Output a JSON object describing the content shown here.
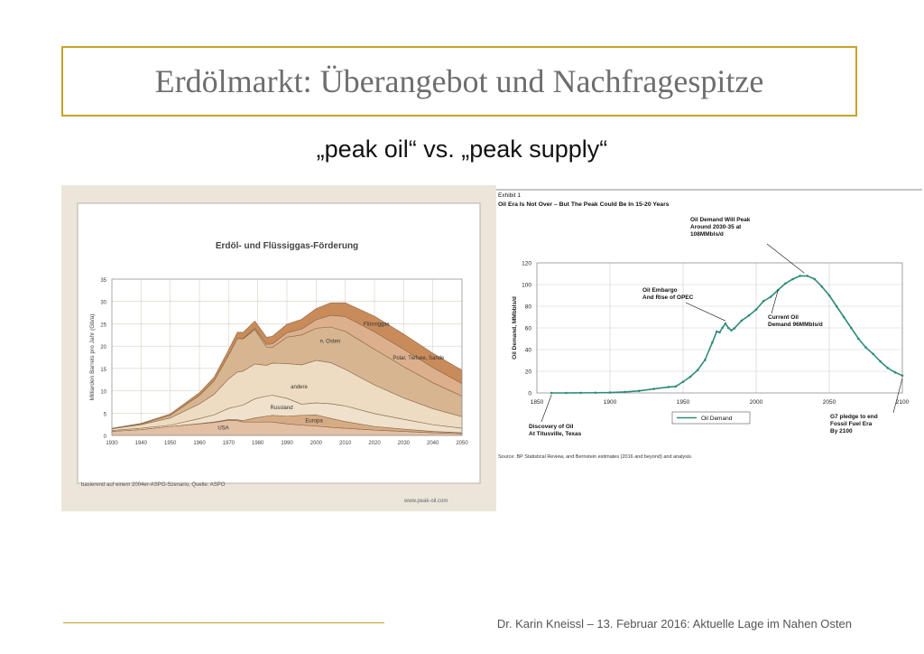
{
  "slide": {
    "title": "Erdölmarkt: Überangebot und Nachfragespitze",
    "subtitle": "„peak oil“ vs. „peak supply“",
    "footer": "Dr. Karin Kneissl – 13. Februar 2016:  Aktuelle Lage im Nahen Osten"
  },
  "colors": {
    "accent": "#c9a227",
    "title": "#6e6e6e",
    "line": "#2e8b7a"
  },
  "chart_data": [
    {
      "type": "area",
      "title": "Erdöl- und Flüssiggas-Förderung",
      "ylabel": "Milliarden Barrels pro Jahr (Gb/a)",
      "xlabel": "",
      "xlim": [
        1930,
        2050
      ],
      "ylim": [
        0,
        35
      ],
      "xticks": [
        "1930",
        "1940",
        "1950",
        "1960",
        "1970",
        "1980",
        "1990",
        "2000",
        "2010",
        "2020",
        "2030",
        "2040",
        "2050"
      ],
      "yticks": [
        "0",
        "5",
        "10",
        "15",
        "20",
        "25",
        "30",
        "35"
      ],
      "x": [
        1930,
        1940,
        1950,
        1960,
        1965,
        1970,
        1973,
        1975,
        1979,
        1983,
        1985,
        1990,
        1995,
        2000,
        2005,
        2010,
        2020,
        2030,
        2040,
        2050
      ],
      "series": [
        {
          "name": "USA",
          "values": [
            0.9,
            1.3,
            2.0,
            2.6,
            2.9,
            3.4,
            3.3,
            3.0,
            3.0,
            3.0,
            3.0,
            2.6,
            2.3,
            2.1,
            1.8,
            1.6,
            1.2,
            0.9,
            0.6,
            0.4
          ],
          "color": "#e3bfa4"
        },
        {
          "name": "Europa",
          "values": [
            0.0,
            0.0,
            0.0,
            0.05,
            0.1,
            0.15,
            0.2,
            0.3,
            0.9,
            1.3,
            1.5,
            1.7,
            2.2,
            2.5,
            2.0,
            1.5,
            0.8,
            0.5,
            0.3,
            0.2
          ],
          "color": "#d7ac85"
        },
        {
          "name": "Russland",
          "values": [
            0.2,
            0.3,
            0.3,
            1.1,
            1.6,
            2.5,
            3.0,
            3.5,
            4.3,
            4.5,
            4.5,
            4.0,
            2.5,
            2.7,
            3.3,
            3.5,
            2.9,
            2.2,
            1.5,
            1.0
          ],
          "color": "#efe1cc"
        },
        {
          "name": "andere",
          "values": [
            0.4,
            0.8,
            1.6,
            3.3,
            4.6,
            6.6,
            7.7,
            7.6,
            7.8,
            6.9,
            7.2,
            7.8,
            8.8,
            9.5,
            9.2,
            8.2,
            6.4,
            4.8,
            3.6,
            2.6
          ],
          "color": "#eddcc1"
        },
        {
          "name": "n. Osten",
          "values": [
            0.0,
            0.1,
            0.6,
            1.9,
            3.0,
            5.3,
            7.5,
            7.2,
            7.7,
            4.1,
            3.5,
            5.9,
            6.7,
            7.2,
            8.0,
            8.5,
            8.0,
            7.0,
            5.8,
            4.6
          ],
          "color": "#d6b590"
        },
        {
          "name": "Polar, Tiefsee, Sande",
          "values": [
            0,
            0,
            0,
            0,
            0,
            0,
            0,
            0.1,
            0.3,
            0.6,
            0.8,
            1.0,
            1.3,
            1.9,
            2.6,
            3.3,
            3.9,
            3.9,
            3.4,
            2.8
          ],
          "color": "#ddb08d"
        },
        {
          "name": "Flüssiggas",
          "values": [
            0.1,
            0.2,
            0.3,
            0.6,
            0.8,
            1.2,
            1.4,
            1.4,
            1.6,
            1.6,
            1.7,
            1.9,
            2.2,
            2.5,
            2.8,
            3.1,
            3.5,
            3.4,
            3.2,
            3.0
          ],
          "color": "#c98b5a"
        }
      ],
      "notes": [
        "basierend auf einem 2004er-ASPO-Szenario, Quelle: ASPO",
        "www.peak-oil.com"
      ]
    },
    {
      "type": "line",
      "header": [
        "Exhibit 1",
        "Oil Era Is Not Over – But The Peak Could Be In 15-20 Years"
      ],
      "ylabel": "Oil Demand, MMbbls/d",
      "xlabel": "",
      "xlim": [
        1850,
        2100
      ],
      "ylim": [
        0,
        120
      ],
      "xticks": [
        "1850",
        "1900",
        "1950",
        "2000",
        "2050",
        "2100"
      ],
      "yticks": [
        "0",
        "20",
        "40",
        "60",
        "80",
        "100",
        "120"
      ],
      "series": [
        {
          "name": "Oil Demand",
          "x": [
            1860,
            1870,
            1880,
            1890,
            1900,
            1910,
            1920,
            1930,
            1940,
            1945,
            1950,
            1955,
            1960,
            1965,
            1970,
            1973,
            1975,
            1977,
            1979,
            1981,
            1983,
            1985,
            1990,
            1995,
            2000,
            2005,
            2010,
            2015,
            2020,
            2025,
            2030,
            2035,
            2040,
            2045,
            2050,
            2055,
            2060,
            2065,
            2070,
            2075,
            2080,
            2085,
            2090,
            2095,
            2100
          ],
          "values": [
            0,
            0,
            0.1,
            0.2,
            0.4,
            0.9,
            1.9,
            3.7,
            5.5,
            6.0,
            10.3,
            15,
            21.1,
            30.5,
            46.5,
            56.6,
            55.9,
            60.3,
            64.0,
            60.0,
            57.8,
            59.5,
            66.7,
            71.4,
            76.9,
            84.7,
            88.7,
            95.0,
            101,
            105,
            108,
            108,
            105,
            98,
            90,
            80,
            70,
            60,
            50,
            42,
            36,
            29,
            23,
            19,
            16
          ]
        }
      ],
      "annotations": [
        "Oil Demand Will Peak Around 2030-35 at 108MMbls/d",
        "Oil Embargo And Rise of OPEC",
        "Current Oil Demand 96MMbls/d",
        "Discovery of Oil At Titusville, Texas",
        "G7 pledge to end Fossil Fuel Era By 2100"
      ],
      "source": "Source: BP Statistical Review, and Bernstein estimates (2016 and beyond) and analysis."
    }
  ]
}
